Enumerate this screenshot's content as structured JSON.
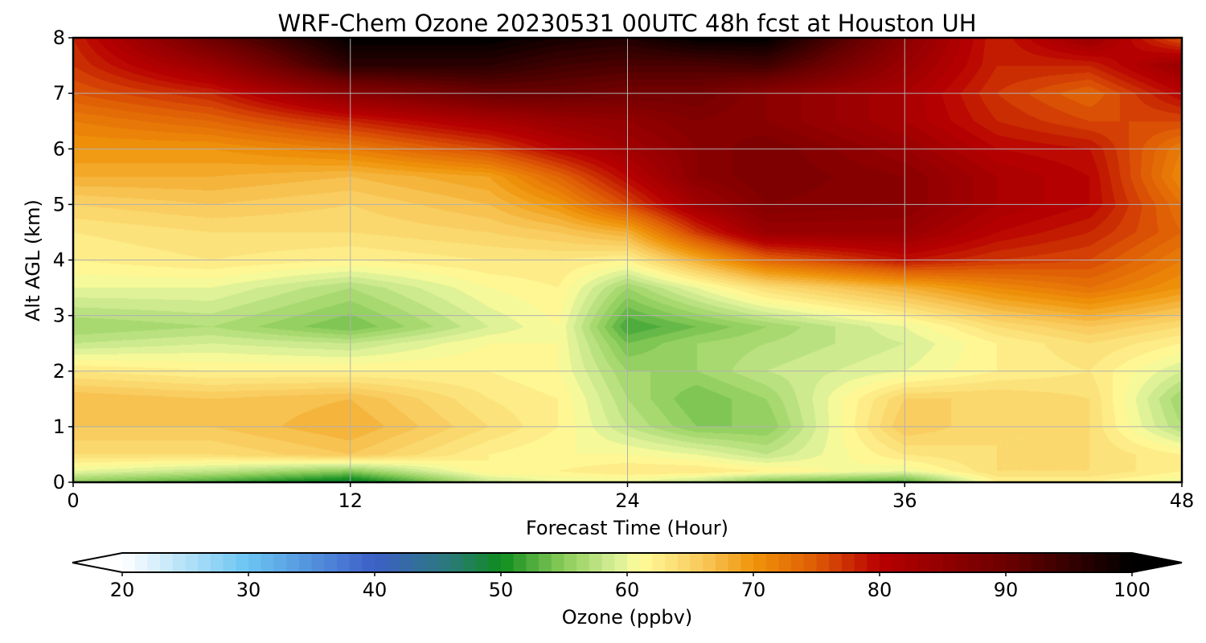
{
  "chart_data": {
    "type": "heatmap",
    "title": "WRF-Chem Ozone  20230531 00UTC 48h fcst at Houston UH",
    "xlabel": "Forecast Time (Hour)",
    "ylabel": "Alt AGL (km)",
    "xlim": [
      0,
      48
    ],
    "ylim": [
      0,
      8
    ],
    "xticks": [
      "0",
      "12",
      "24",
      "36",
      "48"
    ],
    "yticks": [
      "0",
      "1",
      "2",
      "3",
      "4",
      "5",
      "6",
      "7",
      "8"
    ],
    "grid": true,
    "x": [
      0,
      6,
      12,
      18,
      21,
      24,
      27,
      30,
      36,
      40,
      44,
      48
    ],
    "y": [
      0,
      0.2,
      0.5,
      1,
      1.5,
      2,
      2.5,
      2.8,
      3.5,
      4,
      4.5,
      5,
      5.5,
      6,
      6.5,
      7,
      7.5,
      8
    ],
    "z": [
      [
        55,
        52,
        48,
        58,
        60,
        60,
        58,
        54,
        52,
        62,
        62,
        60
      ],
      [
        60,
        58,
        55,
        62,
        62,
        63,
        63,
        62,
        60,
        64,
        64,
        62
      ],
      [
        64,
        64,
        66,
        62,
        61,
        61,
        60,
        58,
        63,
        64,
        64,
        62
      ],
      [
        66,
        66,
        68,
        64,
        62,
        58,
        55,
        55,
        66,
        64,
        64,
        57
      ],
      [
        67,
        66,
        67,
        63,
        62,
        57,
        54,
        56,
        65,
        65,
        64,
        56
      ],
      [
        63,
        62,
        62,
        62,
        61,
        56,
        56,
        58,
        60,
        62,
        63,
        59
      ],
      [
        58,
        59,
        58,
        61,
        61,
        54,
        56,
        57,
        59,
        62,
        64,
        62
      ],
      [
        56,
        57,
        54,
        59,
        61,
        52,
        54,
        56,
        60,
        64,
        66,
        64
      ],
      [
        60,
        60,
        57,
        61,
        62,
        56,
        60,
        64,
        68,
        71,
        73,
        70
      ],
      [
        62,
        63,
        62,
        63,
        63,
        62,
        68,
        74,
        79,
        77,
        76,
        72
      ],
      [
        63,
        64,
        64,
        65,
        66,
        68,
        77,
        84,
        84,
        80,
        78,
        74
      ],
      [
        65,
        66,
        65,
        67,
        70,
        76,
        83,
        87,
        86,
        82,
        80,
        73
      ],
      [
        68,
        68,
        67,
        69,
        74,
        80,
        86,
        88,
        86,
        82,
        80,
        71
      ],
      [
        70,
        70,
        72,
        76,
        80,
        83,
        86,
        88,
        84,
        80,
        79,
        72
      ],
      [
        72,
        74,
        78,
        82,
        84,
        85,
        87,
        86,
        82,
        78,
        76,
        76
      ],
      [
        75,
        78,
        86,
        90,
        90,
        89,
        89,
        86,
        82,
        77,
        74,
        80
      ],
      [
        77,
        84,
        96,
        96,
        94,
        93,
        93,
        94,
        84,
        78,
        78,
        84
      ],
      [
        78,
        90,
        100,
        100,
        98,
        97,
        100,
        100,
        86,
        78,
        84,
        75
      ]
    ],
    "colorbar": {
      "label": "Ozone  (ppbv)",
      "min": 20,
      "max": 100,
      "levels": 80,
      "extend": "both",
      "ticks": [
        "20",
        "30",
        "40",
        "50",
        "60",
        "70",
        "80",
        "90",
        "100"
      ],
      "stops": [
        [
          20,
          "#ffffff"
        ],
        [
          30,
          "#6ac4f2"
        ],
        [
          40,
          "#3c5fc8"
        ],
        [
          46,
          "#2a7a78"
        ],
        [
          50,
          "#0e8c1e"
        ],
        [
          55,
          "#8ccc5a"
        ],
        [
          59,
          "#d6ee96"
        ],
        [
          61,
          "#fffc9a"
        ],
        [
          66,
          "#f8c85a"
        ],
        [
          70,
          "#f0950a"
        ],
        [
          75,
          "#de5a06"
        ],
        [
          80,
          "#b80000"
        ],
        [
          90,
          "#6c0000"
        ],
        [
          100,
          "#000000"
        ]
      ]
    }
  }
}
